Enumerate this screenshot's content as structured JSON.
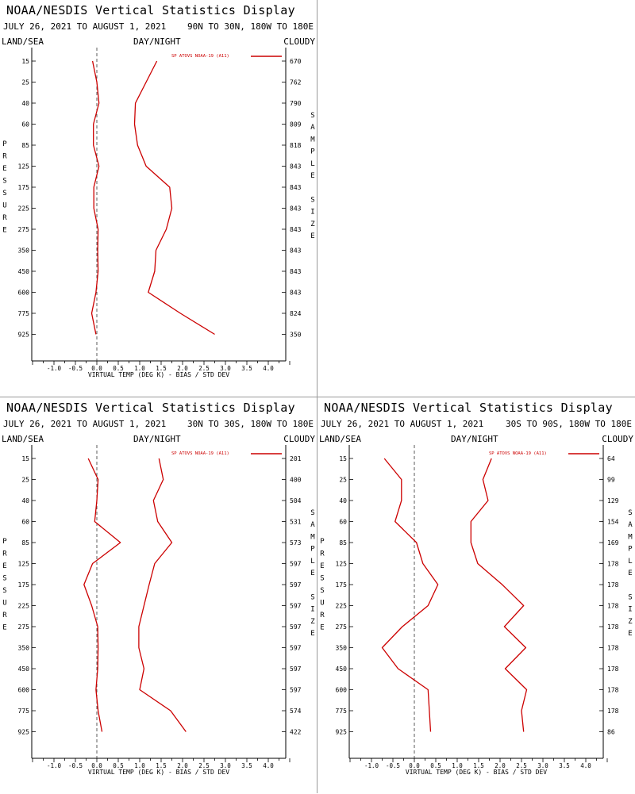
{
  "panels": [
    {
      "title": "NOAA/NESDIS Vertical Statistics Display",
      "dates": "JULY 26, 2021 TO AUGUST 1, 2021",
      "region": "90N TO 30N, 180W TO 180E",
      "land_sea": "LAND/SEA",
      "day_night": "DAY/NIGHT",
      "cloudy": "CLOUDY"
    },
    {
      "title": "NOAA/NESDIS Vertical Statistics Display",
      "dates": "JULY 26, 2021 TO AUGUST 1, 2021",
      "region": "30N TO 30S, 180W TO 180E",
      "land_sea": "LAND/SEA",
      "day_night": "DAY/NIGHT",
      "cloudy": "CLOUDY"
    },
    {
      "title": "NOAA/NESDIS Vertical Statistics Display",
      "dates": "JULY 26, 2021 TO AUGUST 1, 2021",
      "region": "30S TO 90S, 180W TO 180E",
      "land_sea": "LAND/SEA",
      "day_night": "DAY/NIGHT",
      "cloudy": "CLOUDY"
    }
  ],
  "colors": {
    "series": "#cc0000",
    "axis": "#000000",
    "zero_line": "#333333"
  },
  "chart_data": [
    {
      "type": "line",
      "ylabel": "PRESSURE",
      "y2label": "SAMPLE SIZE",
      "xlabel": "VIRTUAL TEMP (DEG K) - BIAS / STD DEV",
      "xlim": [
        -1.5,
        4.5
      ],
      "xticks": [
        "-1.0",
        "-0.5",
        "0.0",
        "0.5",
        "1.0",
        "1.5",
        "2.0",
        "2.5",
        "3.0",
        "3.5",
        "4.0"
      ],
      "pressure_levels": [
        "15",
        "25",
        "40",
        "60",
        "85",
        "125",
        "175",
        "225",
        "275",
        "350",
        "450",
        "600",
        "775",
        "925"
      ],
      "sample_size": [
        "670",
        "762",
        "790",
        "809",
        "818",
        "843",
        "843",
        "843",
        "843",
        "843",
        "843",
        "843",
        "824",
        "350"
      ],
      "legend": "SP ATOVS NOAA-19 (A11)",
      "series": [
        {
          "values": [
            -0.1,
            0.0,
            0.05,
            -0.08,
            -0.08,
            0.05,
            -0.07,
            -0.07,
            0.03,
            0.02,
            0.03,
            -0.02,
            -0.12,
            -0.02
          ]
        },
        {
          "values": [
            1.4,
            1.15,
            0.9,
            0.88,
            0.95,
            1.15,
            1.7,
            1.75,
            1.62,
            1.38,
            1.35,
            1.2,
            1.95,
            2.75
          ]
        }
      ]
    },
    {
      "type": "line",
      "ylabel": "PRESSURE",
      "y2label": "SAMPLE SIZE",
      "xlabel": "VIRTUAL TEMP (DEG K) - BIAS / STD DEV",
      "xlim": [
        -1.5,
        4.5
      ],
      "xticks": [
        "-1.0",
        "-0.5",
        "0.0",
        "0.5",
        "1.0",
        "1.5",
        "2.0",
        "2.5",
        "3.0",
        "3.5",
        "4.0"
      ],
      "pressure_levels": [
        "15",
        "25",
        "40",
        "60",
        "85",
        "125",
        "175",
        "225",
        "275",
        "350",
        "450",
        "600",
        "775",
        "925"
      ],
      "sample_size": [
        "201",
        "400",
        "504",
        "531",
        "573",
        "597",
        "597",
        "597",
        "597",
        "597",
        "597",
        "597",
        "574",
        "422"
      ],
      "legend": "SP ATOVS NOAA-19 (A11)",
      "series": [
        {
          "values": [
            -0.2,
            0.03,
            0.0,
            -0.05,
            0.55,
            -0.1,
            -0.3,
            -0.12,
            0.02,
            0.03,
            0.02,
            -0.02,
            0.03,
            0.12
          ]
        },
        {
          "values": [
            1.45,
            1.55,
            1.32,
            1.42,
            1.75,
            1.35,
            1.22,
            1.1,
            0.98,
            0.98,
            1.1,
            1.0,
            1.72,
            2.08
          ]
        }
      ]
    },
    {
      "type": "line",
      "ylabel": "PRESSURE",
      "y2label": "SAMPLE SIZE",
      "xlabel": "VIRTUAL TEMP (DEG K) - BIAS / STD DEV",
      "xlim": [
        -1.5,
        4.5
      ],
      "xticks": [
        "-1.0",
        "-0.5",
        "0.0",
        "0.5",
        "1.0",
        "1.5",
        "2.0",
        "2.5",
        "3.0",
        "3.5",
        "4.0"
      ],
      "pressure_levels": [
        "15",
        "25",
        "40",
        "60",
        "85",
        "125",
        "175",
        "225",
        "275",
        "350",
        "450",
        "600",
        "775",
        "925"
      ],
      "sample_size": [
        "64",
        "99",
        "129",
        "154",
        "169",
        "178",
        "178",
        "178",
        "178",
        "178",
        "178",
        "178",
        "178",
        "86"
      ],
      "legend": "SP ATOVS NOAA-19 (A11)",
      "series": [
        {
          "values": [
            -0.7,
            -0.3,
            -0.3,
            -0.45,
            0.05,
            0.2,
            0.55,
            0.32,
            -0.28,
            -0.75,
            -0.38,
            0.32,
            0.35,
            0.38
          ]
        },
        {
          "values": [
            1.8,
            1.6,
            1.72,
            1.32,
            1.32,
            1.48,
            2.05,
            2.55,
            2.1,
            2.6,
            2.12,
            2.62,
            2.5,
            2.55
          ]
        }
      ]
    }
  ]
}
